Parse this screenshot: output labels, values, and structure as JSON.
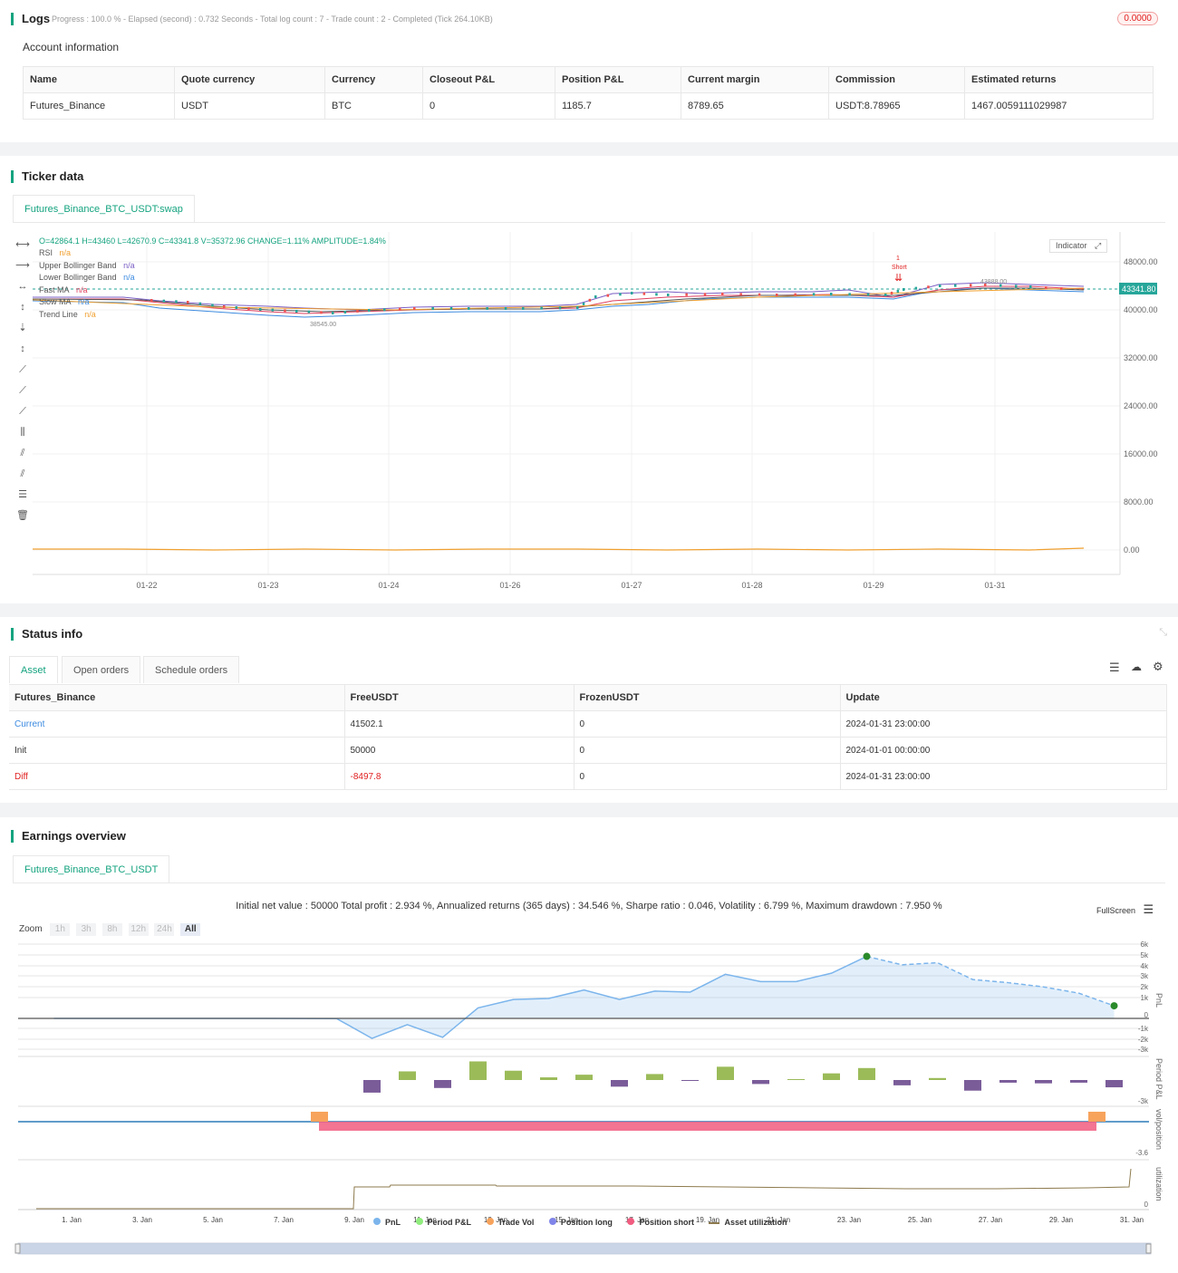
{
  "logs": {
    "title": "Logs",
    "progress": "Progress : 100.0 % - Elapsed (second) : 0.732  Seconds - Total log count : 7 - Trade count : 2 - Completed (Tick 264.10KB)",
    "badge": "0.0000",
    "account_title": "Account information",
    "headers": [
      "Name",
      "Quote currency",
      "Currency",
      "Closeout P&L",
      "Position P&L",
      "Current margin",
      "Commission",
      "Estimated returns"
    ],
    "row": [
      "Futures_Binance",
      "USDT",
      "BTC",
      "0",
      "1185.7",
      "8789.65",
      "USDT:8.78965",
      "1467.0059111029987"
    ]
  },
  "ticker": {
    "title": "Ticker data",
    "tab": "Futures_Binance_BTC_USDT:swap",
    "ohlc": "O=42864.1 H=43460 L=42670.9 C=43341.8 V=35372.96 CHANGE=1.11% AMPLITUDE=1.84%",
    "legend": [
      {
        "name": "RSI",
        "value": "n/a",
        "color": "#f0a030"
      },
      {
        "name": "Upper Bollinger Band",
        "value": "n/a",
        "color": "#7b5fc4"
      },
      {
        "name": "Lower Bollinger Band",
        "value": "n/a",
        "color": "#3d8be0"
      },
      {
        "name": "Fast MA",
        "value": "n/a",
        "color": "#e04060"
      },
      {
        "name": "Slow MA",
        "value": "n/a",
        "color": "#3d8be0"
      },
      {
        "name": "Trend Line",
        "value": "n/a",
        "color": "#f0a030"
      }
    ],
    "indicator_btn": "Indicator",
    "y_ticks": [
      "48000.00",
      "40000.00",
      "32000.00",
      "24000.00",
      "16000.00",
      "8000.00",
      "0.00"
    ],
    "x_ticks": [
      "01-22",
      "01-23",
      "01-24",
      "01-26",
      "01-27",
      "01-28",
      "01-29",
      "01-31"
    ],
    "last_price": "43341.80",
    "high_label": "43888.00",
    "low_label": "38545.00",
    "signal_num": "1",
    "signal_label": "Short"
  },
  "status": {
    "title": "Status info",
    "tabs": [
      "Asset",
      "Open orders",
      "Schedule orders"
    ],
    "headers": [
      "Futures_Binance",
      "FreeUSDT",
      "FrozenUSDT",
      "Update"
    ],
    "rows": [
      {
        "name": "Current",
        "free": "41502.1",
        "frozen": "0",
        "update": "2024-01-31 23:00:00",
        "color": "#3d8be0"
      },
      {
        "name": "Init",
        "free": "50000",
        "frozen": "0",
        "update": "2024-01-01 00:00:00",
        "color": "#333"
      },
      {
        "name": "Diff",
        "free": "-8497.8",
        "frozen": "0",
        "update": "2024-01-31 23:00:00",
        "color": "#e02020"
      }
    ]
  },
  "earnings": {
    "title": "Earnings overview",
    "tab": "Futures_Binance_BTC_USDT",
    "summary": "Initial net value : 50000  Total profit : 2.934 %, Annualized returns (365 days) : 34.546 %, Sharpe ratio : 0.046, Volatility : 6.799 %, Maximum drawdown : 7.950 %",
    "fullscreen": "FullScreen",
    "zoom_label": "Zoom",
    "zoom_opts": [
      "1h",
      "3h",
      "8h",
      "12h",
      "24h",
      "All"
    ],
    "pnl_ticks": [
      "6k",
      "5k",
      "4k",
      "3k",
      "2k",
      "1k",
      "0",
      "-1k",
      "-2k",
      "-3k"
    ],
    "axis_pnl": "PnL",
    "axis_period": "Period P&L",
    "axis_vol": "vol/position",
    "axis_util": "utilization",
    "period_min": "-3k",
    "vol_min": "-3.6",
    "util_zero": "0",
    "x_ticks": [
      "1. Jan",
      "3. Jan",
      "5. Jan",
      "7. Jan",
      "9. Jan",
      "11. Jan",
      "13. Jan",
      "15. Jan",
      "17. Jan",
      "19. Jan",
      "21. Jan",
      "23. Jan",
      "25. Jan",
      "27. Jan",
      "29. Jan",
      "31. Jan"
    ],
    "legend": [
      {
        "name": "PnL",
        "color": "#7cb5ec"
      },
      {
        "name": "Period P&L",
        "color": "#90ed7d"
      },
      {
        "name": "Trade Vol",
        "color": "#f7a35c"
      },
      {
        "name": "Position long",
        "color": "#8085e9"
      },
      {
        "name": "Position short",
        "color": "#f15c80"
      },
      {
        "name": "Asset utilization",
        "color": "#8d7a4d"
      }
    ]
  },
  "chart_data": [
    {
      "type": "line",
      "title": "",
      "ylabel": "PnL",
      "x": [
        "1. Jan",
        "3. Jan",
        "5. Jan",
        "7. Jan",
        "9. Jan",
        "10. Jan",
        "11. Jan",
        "12. Jan",
        "13. Jan",
        "14. Jan",
        "15. Jan",
        "16. Jan",
        "17. Jan",
        "18. Jan",
        "19. Jan",
        "20. Jan",
        "21. Jan",
        "22. Jan",
        "23. Jan",
        "24. Jan",
        "25. Jan",
        "26. Jan",
        "27. Jan",
        "28. Jan",
        "29. Jan",
        "30. Jan",
        "31. Jan"
      ],
      "values": [
        0,
        0,
        0,
        0,
        -20,
        -1900,
        -600,
        -1800,
        1000,
        1800,
        1900,
        2700,
        1800,
        2600,
        2500,
        4200,
        3500,
        3500,
        4300,
        5900,
        5100,
        5300,
        3700,
        3400,
        3000,
        2400,
        1200
      ],
      "ylim": [
        -3000,
        6000
      ]
    },
    {
      "type": "bar",
      "ylabel": "Period P&L",
      "x": [
        "10. Jan",
        "11. Jan",
        "12. Jan",
        "13. Jan",
        "14. Jan",
        "15. Jan",
        "16. Jan",
        "17. Jan",
        "18. Jan",
        "19. Jan",
        "20. Jan",
        "21. Jan",
        "22. Jan",
        "23. Jan",
        "24. Jan",
        "25. Jan",
        "26. Jan",
        "27. Jan",
        "28. Jan",
        "29. Jan",
        "30. Jan",
        "31. Jan"
      ],
      "values": [
        -1900,
        1300,
        -1200,
        2800,
        1400,
        400,
        800,
        -1000,
        900,
        -100,
        2000,
        -600,
        0,
        1000,
        1800,
        -800,
        300,
        -1600,
        -400,
        -500,
        -400,
        -1100
      ]
    }
  ]
}
